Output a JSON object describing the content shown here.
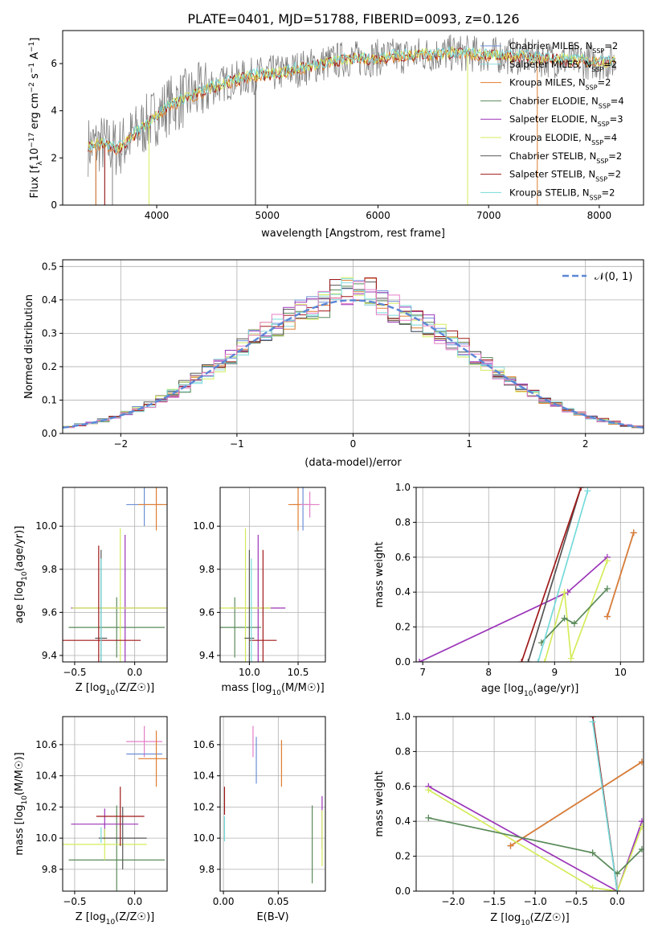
{
  "figure": {
    "title": "PLATE=0401, MJD=51788, FIBERID=0093, z=0.126"
  },
  "colors": {
    "Chabrier MILES": "#6b8fd6",
    "Salpeter MILES": "#8fd9d9",
    "Kroupa MILES": "#e07d30",
    "Chabrier ELODIE": "#5a8a5a",
    "Salpeter ELODIE": "#9b34b8",
    "Kroupa ELODIE": "#d4ec5c",
    "Chabrier STELIB": "#555555",
    "Salpeter STELIB": "#a01818",
    "Kroupa STELIB": "#76dada",
    "data": "#808080",
    "normal": "#5b87d6",
    "pink": "#e57fc6"
  },
  "chart_data": [
    {
      "id": "spectrum",
      "type": "line",
      "xlabel": "wavelength [Angstrom, rest frame]",
      "ylabel_parts": [
        "Flux [f",
        "λ",
        "10",
        "−17",
        " erg cm",
        "−2",
        " s",
        "−1",
        " A",
        "−1",
        "]"
      ],
      "xlim": [
        3150,
        8400
      ],
      "ylim": [
        0,
        7.4
      ],
      "xticks": [
        4000,
        5000,
        6000,
        7000,
        8000
      ],
      "yticks": [
        0,
        2,
        4,
        6
      ],
      "legend_position": "right",
      "legend": [
        {
          "name": "Chabrier MILES",
          "n": "2"
        },
        {
          "name": "Salpeter MILES",
          "n": "2"
        },
        {
          "name": "Kroupa MILES",
          "n": "2"
        },
        {
          "name": "Chabrier ELODIE",
          "n": "4"
        },
        {
          "name": "Salpeter ELODIE",
          "n": "3"
        },
        {
          "name": "Kroupa ELODIE",
          "n": "4"
        },
        {
          "name": "Chabrier STELIB",
          "n": "2"
        },
        {
          "name": "Salpeter STELIB",
          "n": "2"
        },
        {
          "name": "Kroupa STELIB",
          "n": "2"
        }
      ],
      "legend_n_label": "N",
      "legend_n_sub": "SSP",
      "continuum_nodes": [
        [
          3380,
          2.5
        ],
        [
          3500,
          2.6
        ],
        [
          3650,
          2.4
        ],
        [
          3800,
          3.0
        ],
        [
          3950,
          3.6
        ],
        [
          4100,
          4.2
        ],
        [
          4300,
          4.6
        ],
        [
          4500,
          5.0
        ],
        [
          4700,
          5.3
        ],
        [
          4900,
          5.5
        ],
        [
          5100,
          5.6
        ],
        [
          5300,
          5.8
        ],
        [
          5500,
          6.0
        ],
        [
          5700,
          6.2
        ],
        [
          5900,
          6.2
        ],
        [
          6100,
          6.3
        ],
        [
          6300,
          6.35
        ],
        [
          6500,
          6.4
        ],
        [
          6700,
          6.45
        ],
        [
          6900,
          6.4
        ],
        [
          7100,
          6.35
        ],
        [
          7300,
          6.3
        ],
        [
          7500,
          6.2
        ],
        [
          7700,
          6.15
        ],
        [
          7900,
          6.1
        ],
        [
          8100,
          6.05
        ]
      ],
      "spikes": [
        {
          "x": 3450,
          "y": 0
        },
        {
          "x": 3530,
          "y": 0
        },
        {
          "x": 3600,
          "y": 0
        },
        {
          "x": 4890,
          "y": 0
        },
        {
          "x": 4895,
          "y": 0
        }
      ]
    },
    {
      "id": "residuals",
      "type": "histogram",
      "xlabel": "(data-model)/error",
      "ylabel": "Normed distribution",
      "xlim": [
        -2.5,
        2.5
      ],
      "ylim": [
        0,
        0.52
      ],
      "xticks": [
        -2,
        -1,
        0,
        1,
        2
      ],
      "yticks": [
        0.0,
        0.1,
        0.2,
        0.3,
        0.4,
        0.5
      ],
      "bin_width": 0.1,
      "normal_label": "𝒩(0, 1)",
      "legend_position": "top-right"
    },
    {
      "id": "age_vs_Z",
      "type": "errorbar",
      "xlabel": "Z [log10(Z/Z☉)]",
      "ylabel": "age  [log10(age/yr)]",
      "xlim": [
        -0.6,
        0.27
      ],
      "ylim": [
        9.37,
        10.18
      ],
      "xticks": [
        -0.5,
        0.0
      ],
      "yticks": [
        9.4,
        9.6,
        9.8,
        10.0
      ],
      "points": [
        {
          "model": "Chabrier MILES",
          "x": 0.08,
          "y": 10.1,
          "xerr": 0.15,
          "yerr": 0.1
        },
        {
          "model": "Kroupa MILES",
          "x": 0.18,
          "y": 10.1,
          "xerr": 0.15,
          "yerr": 0.12
        },
        {
          "model": "Chabrier ELODIE",
          "x": -0.15,
          "y": 9.53,
          "xerr": 0.4,
          "yerr": 0.14
        },
        {
          "model": "Salpeter ELODIE",
          "x": -0.08,
          "y": 9.62,
          "xerr": 0.45,
          "yerr": 0.34
        },
        {
          "model": "Kroupa ELODIE",
          "x": -0.12,
          "y": 9.62,
          "xerr": 0.4,
          "yerr": 0.37
        },
        {
          "model": "Chabrier STELIB",
          "x": -0.28,
          "y": 9.48,
          "xerr": 0.05,
          "yerr": 0.41
        },
        {
          "model": "Salpeter STELIB",
          "x": -0.3,
          "y": 9.47,
          "xerr": 0.35,
          "yerr": 0.44
        },
        {
          "model": "Kroupa STELIB",
          "x": -0.28,
          "y": 9.47,
          "xerr": 0.0,
          "yerr": 0.38
        }
      ]
    },
    {
      "id": "age_vs_mass",
      "type": "errorbar",
      "xlabel": "mass [log10(M/M☉)]",
      "ylabel": "",
      "xlim": [
        9.7,
        10.78
      ],
      "ylim": [
        9.37,
        10.18
      ],
      "xticks": [
        10.0,
        10.5
      ],
      "yticks": [
        9.4,
        9.6,
        9.8,
        10.0
      ],
      "points": [
        {
          "model": "Chabrier MILES",
          "x": 10.55,
          "y": 10.1,
          "xerr": 0.1,
          "yerr": 0.12
        },
        {
          "model": "Kroupa MILES",
          "x": 10.5,
          "y": 10.1,
          "xerr": 0.1,
          "yerr": 0.12
        },
        {
          "model": "pink",
          "x": 10.62,
          "y": 10.1,
          "xerr": 0.1,
          "yerr": 0.06
        },
        {
          "model": "Chabrier ELODIE",
          "x": 9.85,
          "y": 9.53,
          "xerr": 0.27,
          "yerr": 0.14
        },
        {
          "model": "Salpeter ELODIE",
          "x": 10.09,
          "y": 9.62,
          "xerr": 0.28,
          "yerr": 0.34
        },
        {
          "model": "Kroupa ELODIE",
          "x": 9.96,
          "y": 9.62,
          "xerr": 0.26,
          "yerr": 0.37
        },
        {
          "model": "Chabrier STELIB",
          "x": 10.0,
          "y": 9.48,
          "xerr": 0.05,
          "yerr": 0.41
        },
        {
          "model": "Salpeter STELIB",
          "x": 10.14,
          "y": 9.47,
          "xerr": 0.14,
          "yerr": 0.42
        },
        {
          "model": "Kroupa STELIB",
          "x": 10.02,
          "y": 9.47,
          "xerr": 0.0,
          "yerr": 0.38
        }
      ]
    },
    {
      "id": "weight_vs_age",
      "type": "line",
      "xlabel": "age  [log10(age/yr)]",
      "ylabel": "mass weight",
      "xlim": [
        6.9,
        10.35
      ],
      "ylim": [
        0,
        1.0
      ],
      "xticks": [
        7,
        8,
        9,
        10
      ],
      "yticks": [
        0.0,
        0.2,
        0.4,
        0.6,
        0.8,
        1.0
      ],
      "series": [
        {
          "model": "Chabrier MILES",
          "x": [
            9.8,
            10.2
          ],
          "y": [
            0.26,
            0.74
          ]
        },
        {
          "model": "Kroupa MILES",
          "x": [
            9.8,
            10.2
          ],
          "y": [
            0.26,
            0.74
          ]
        },
        {
          "model": "Salpeter ELODIE",
          "x": [
            6.95,
            9.2,
            9.8
          ],
          "y": [
            0.0,
            0.4,
            0.6
          ]
        },
        {
          "model": "Kroupa ELODIE",
          "x": [
            8.85,
            9.15,
            9.25,
            9.8
          ],
          "y": [
            0.0,
            0.4,
            0.02,
            0.58
          ]
        },
        {
          "model": "Chabrier ELODIE",
          "x": [
            8.8,
            9.15,
            9.3,
            9.8
          ],
          "y": [
            0.11,
            0.25,
            0.22,
            0.42
          ]
        },
        {
          "model": "Chabrier STELIB",
          "x": [
            8.6,
            9.4
          ],
          "y": [
            0.0,
            1.0
          ]
        },
        {
          "model": "Salpeter STELIB",
          "x": [
            8.5,
            9.4
          ],
          "y": [
            0.0,
            1.0
          ]
        },
        {
          "model": "Kroupa STELIB",
          "x": [
            8.75,
            9.5
          ],
          "y": [
            0.0,
            0.98
          ]
        }
      ]
    },
    {
      "id": "mass_vs_Z",
      "type": "errorbar",
      "xlabel": "Z [log10(Z/Z☉)]",
      "ylabel": "mass [log10(M/M☉)]",
      "xlim": [
        -0.6,
        0.27
      ],
      "ylim": [
        9.66,
        10.78
      ],
      "xticks": [
        -0.5,
        0.0
      ],
      "yticks": [
        9.8,
        10.0,
        10.2,
        10.4,
        10.6
      ],
      "points": [
        {
          "model": "pink",
          "x": 0.08,
          "y": 10.62,
          "xerr": 0.15,
          "yerr": 0.1
        },
        {
          "model": "Chabrier MILES",
          "x": 0.08,
          "y": 10.54,
          "xerr": 0.15,
          "yerr": 0.0
        },
        {
          "model": "Kroupa MILES",
          "x": 0.18,
          "y": 10.51,
          "xerr": 0.15,
          "yerr": 0.18
        },
        {
          "model": "Chabrier ELODIE",
          "x": -0.15,
          "y": 9.86,
          "xerr": 0.4,
          "yerr": 0.35
        },
        {
          "model": "Salpeter ELODIE",
          "x": -0.25,
          "y": 10.09,
          "xerr": 0.28,
          "yerr": 0.1
        },
        {
          "model": "Kroupa ELODIE",
          "x": -0.25,
          "y": 9.96,
          "xerr": 0.35,
          "yerr": 0.1
        },
        {
          "model": "Chabrier STELIB",
          "x": -0.1,
          "y": 10.0,
          "xerr": 0.2,
          "yerr": 0.2
        },
        {
          "model": "Salpeter STELIB",
          "x": -0.12,
          "y": 10.14,
          "xerr": 0.2,
          "yerr": 0.19
        },
        {
          "model": "Kroupa STELIB",
          "x": -0.28,
          "y": 10.02,
          "xerr": 0.0,
          "yerr": 0.05
        }
      ]
    },
    {
      "id": "mass_vs_ebv",
      "type": "errorbar",
      "xlabel": "E(B-V)",
      "ylabel": "",
      "xlim": [
        -0.003,
        0.093
      ],
      "ylim": [
        9.66,
        10.78
      ],
      "xticks": [
        0.0,
        0.05
      ],
      "yticks": [
        9.8,
        10.0,
        10.2,
        10.4,
        10.6
      ],
      "points": [
        {
          "model": "pink",
          "x": 0.027,
          "y": 10.62,
          "xerr": 0,
          "yerr": 0.1
        },
        {
          "model": "Chabrier MILES",
          "x": 0.03,
          "y": 10.5,
          "xerr": 0,
          "yerr": 0.15
        },
        {
          "model": "Kroupa MILES",
          "x": 0.053,
          "y": 10.48,
          "xerr": 0,
          "yerr": 0.15
        },
        {
          "model": "Chabrier ELODIE",
          "x": 0.081,
          "y": 9.96,
          "xerr": 0,
          "yerr": 0.25
        },
        {
          "model": "Salpeter ELODIE",
          "x": 0.09,
          "y": 10.1,
          "xerr": 0,
          "yerr": 0.17
        },
        {
          "model": "Kroupa ELODIE",
          "x": 0.09,
          "y": 10.0,
          "xerr": 0,
          "yerr": 0.18
        },
        {
          "model": "Salpeter STELIB",
          "x": 0.001,
          "y": 10.24,
          "xerr": 0,
          "yerr": 0.09
        },
        {
          "model": "Kroupa STELIB",
          "x": 0.001,
          "y": 10.06,
          "xerr": 0,
          "yerr": 0.08
        }
      ]
    },
    {
      "id": "weight_vs_Z",
      "type": "line",
      "xlabel": "Z [log10(Z/Z☉)]",
      "ylabel": "mass weight",
      "xlim": [
        -2.45,
        0.32
      ],
      "ylim": [
        0,
        1.0
      ],
      "xticks": [
        -2.0,
        -1.5,
        -1.0,
        -0.5,
        0.0
      ],
      "yticks": [
        0.0,
        0.2,
        0.4,
        0.6,
        0.8,
        1.0
      ],
      "series": [
        {
          "model": "Chabrier MILES",
          "x": [
            -1.3,
            0.3
          ],
          "y": [
            0.26,
            0.74
          ]
        },
        {
          "model": "Kroupa MILES",
          "x": [
            -1.3,
            0.3
          ],
          "y": [
            0.26,
            0.74
          ]
        },
        {
          "model": "Salpeter ELODIE",
          "x": [
            -2.3,
            0.0,
            0.3
          ],
          "y": [
            0.6,
            0.0,
            0.4
          ]
        },
        {
          "model": "Kroupa ELODIE",
          "x": [
            -2.3,
            -0.3,
            0.0,
            0.3
          ],
          "y": [
            0.58,
            0.02,
            0.0,
            0.37
          ]
        },
        {
          "model": "Chabrier ELODIE",
          "x": [
            -2.3,
            -0.3,
            0.0,
            0.3
          ],
          "y": [
            0.42,
            0.22,
            0.1,
            0.24
          ]
        },
        {
          "model": "Chabrier STELIB",
          "x": [
            -0.3,
            0.0
          ],
          "y": [
            1.0,
            0.0
          ]
        },
        {
          "model": "Salpeter STELIB",
          "x": [
            -0.3,
            0.0
          ],
          "y": [
            1.0,
            0.0
          ]
        },
        {
          "model": "Kroupa STELIB",
          "x": [
            -0.3,
            0.0
          ],
          "y": [
            0.97,
            0.0
          ]
        }
      ]
    }
  ]
}
